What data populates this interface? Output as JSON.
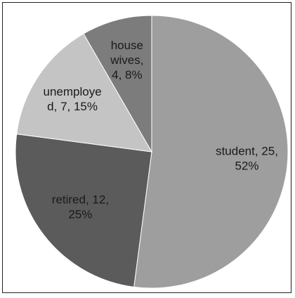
{
  "chart_data": {
    "type": "pie",
    "title": "",
    "slices": [
      {
        "category": "student",
        "value": 25,
        "percent": "52%",
        "color": "#9e9e9e",
        "label_lines": [
          "student, 25,",
          "52%"
        ]
      },
      {
        "category": "retired",
        "value": 12,
        "percent": "25%",
        "color": "#5b5b5b",
        "label_lines": [
          "retired, 12,",
          "25%"
        ]
      },
      {
        "category": "unemployed",
        "value": 7,
        "percent": "15%",
        "color": "#c4c4c4",
        "label_lines": [
          "unemploye",
          "d, 7, 15%"
        ]
      },
      {
        "category": "house wives",
        "value": 4,
        "percent": "8%",
        "color": "#7c7c7c",
        "label_lines": [
          "house",
          "wives,",
          "4, 8%"
        ]
      }
    ],
    "start_angle": "12 o'clock",
    "direction": "clockwise",
    "legend": "none"
  }
}
